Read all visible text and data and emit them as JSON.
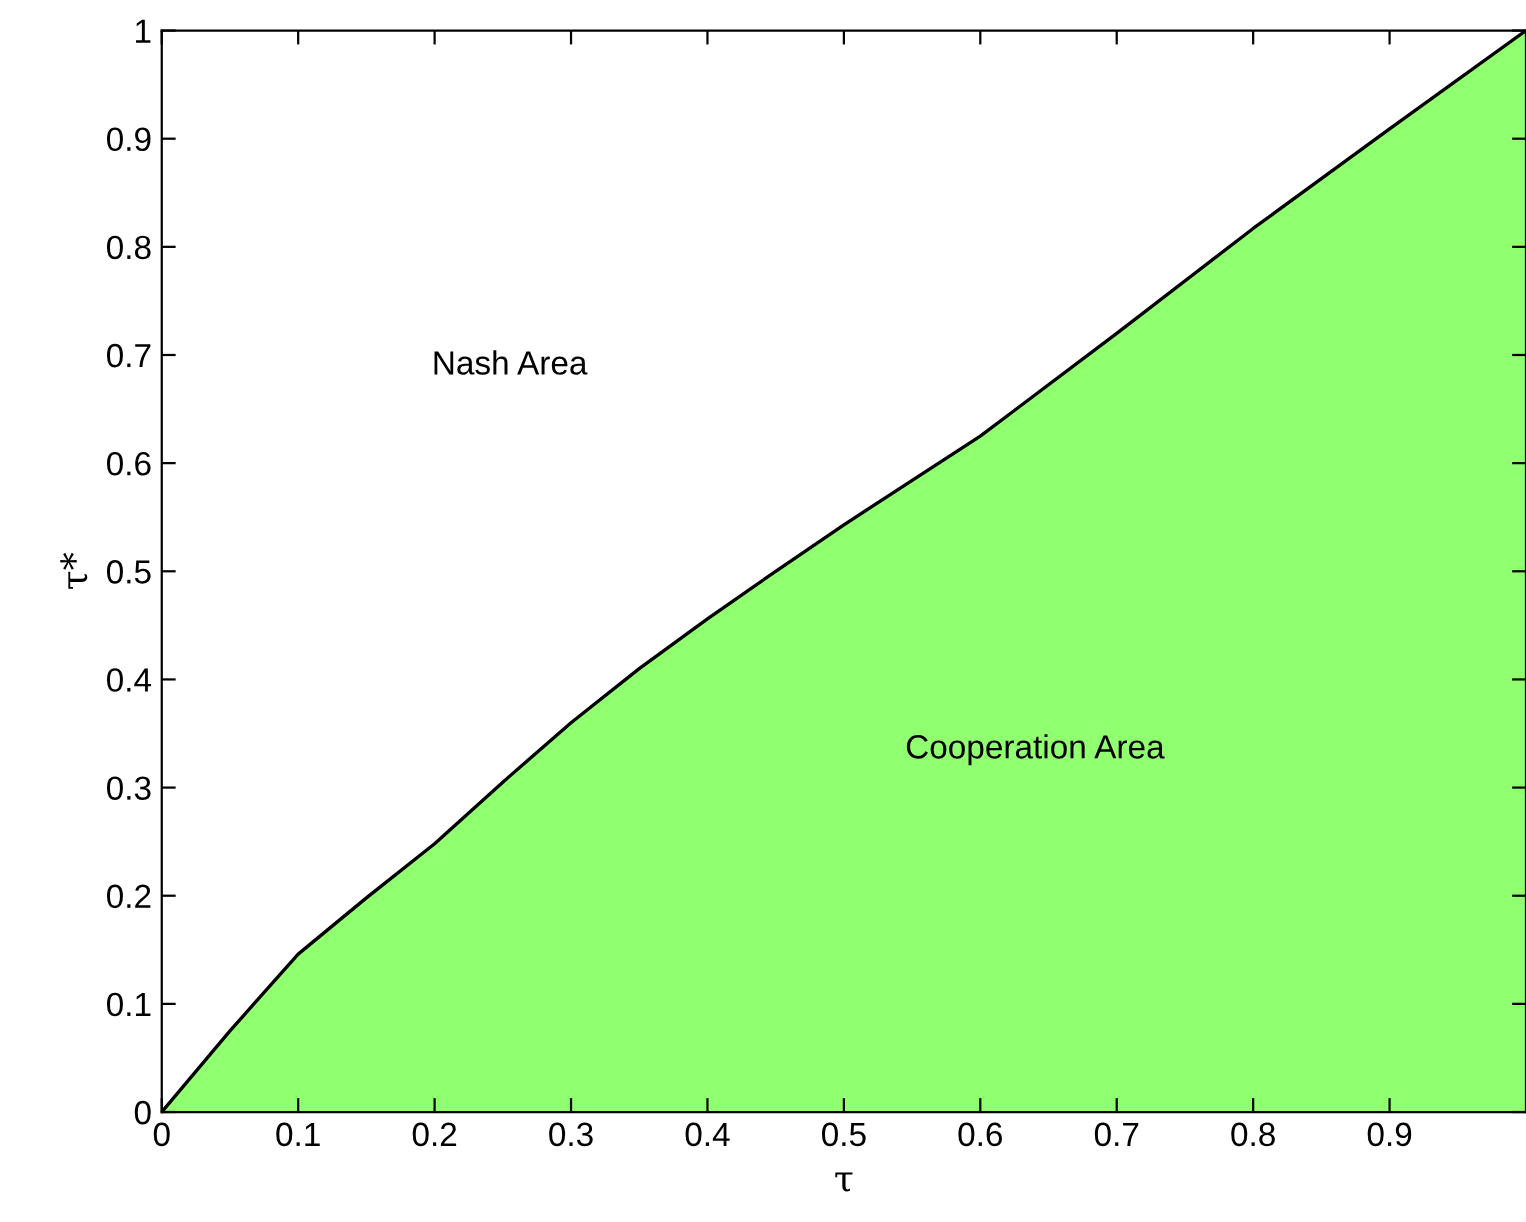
{
  "chart_data": {
    "type": "area",
    "xlabel": "τ",
    "ylabel": "τ*",
    "annotations": [
      "Nash Area",
      "Cooperation Area"
    ],
    "x": [
      0,
      0.05,
      0.1,
      0.15,
      0.2,
      0.25,
      0.3,
      0.35,
      0.4,
      0.45,
      0.5,
      0.6,
      0.7,
      0.8,
      0.9,
      1.0
    ],
    "series": [
      {
        "color": "#90ff70",
        "values": [
          0,
          0.075,
          0.146,
          0.198,
          0.248,
          0.305,
          0.36,
          0.41,
          0.456,
          0.5,
          0.543,
          0.625,
          0.72,
          0.817,
          0.909,
          1.0
        ]
      }
    ],
    "xlim": [
      0,
      1
    ],
    "ylim": [
      0,
      1
    ],
    "xticks": [
      0,
      0.1,
      0.2,
      0.3,
      0.4,
      0.5,
      0.6,
      0.7,
      0.8,
      0.9
    ],
    "yticks": [
      0,
      0.1,
      0.2,
      0.3,
      0.4,
      0.5,
      0.6,
      0.7,
      0.8,
      0.9,
      1
    ],
    "grid": false,
    "legend": false
  }
}
